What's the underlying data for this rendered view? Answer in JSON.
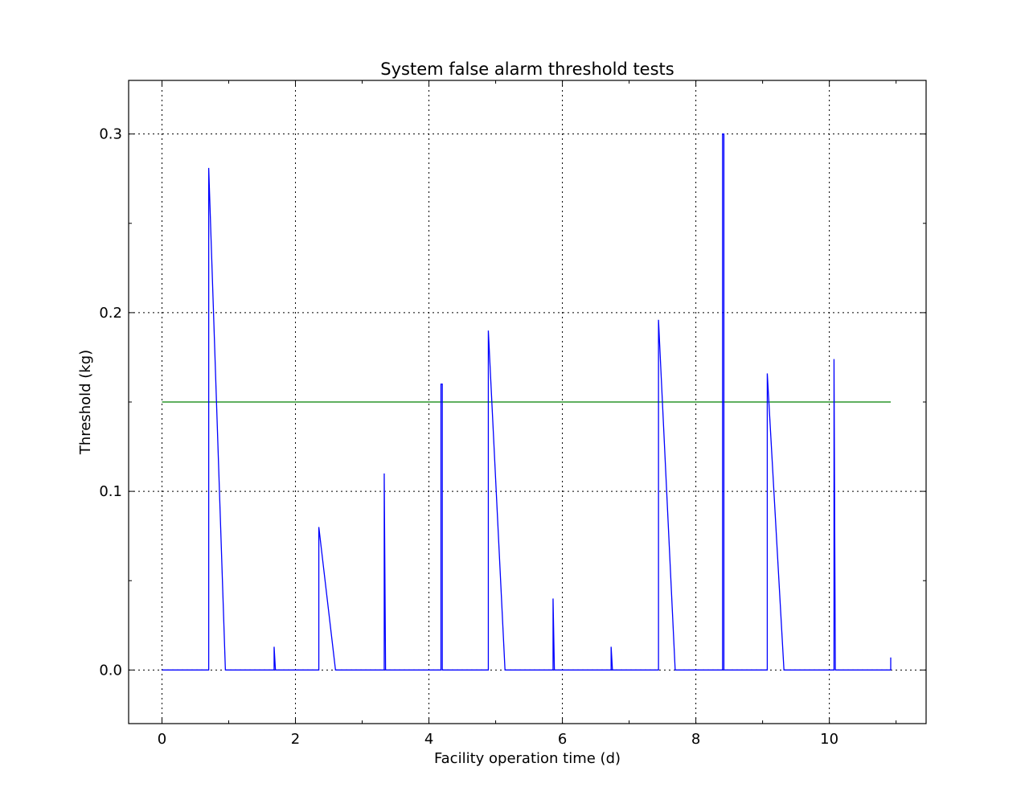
{
  "chart_data": {
    "type": "line",
    "title": "System false alarm threshold tests",
    "xlabel": "Facility operation time (d)",
    "ylabel": "Threshold (kg)",
    "xlim": [
      -0.5,
      11.45
    ],
    "ylim": [
      -0.03,
      0.33
    ],
    "xticks": [
      0,
      2,
      4,
      6,
      8,
      10
    ],
    "xtick_labels": [
      "0",
      "2",
      "4",
      "6",
      "8",
      "10"
    ],
    "yticks": [
      0.0,
      0.1,
      0.2,
      0.3
    ],
    "ytick_labels": [
      "0.0",
      "0.1",
      "0.2",
      "0.3"
    ],
    "grid": true,
    "series": [
      {
        "color": "#0000ff",
        "x": [
          0,
          0.7,
          0.7,
          0.95,
          1.68,
          1.68,
          1.7,
          2.35,
          2.35,
          2.6,
          3.33,
          3.33,
          3.35,
          4.18,
          4.18,
          4.2,
          4.2,
          4.89,
          4.89,
          5.14,
          5.86,
          5.86,
          5.88,
          6.73,
          6.73,
          6.75,
          7.44,
          7.44,
          7.69,
          8.4,
          8.4,
          8.42,
          8.42,
          9.07,
          9.07,
          9.32,
          10.07,
          10.07,
          10.09,
          10.92,
          10.92
        ],
        "y": [
          0,
          0,
          0.281,
          0,
          0,
          0.013,
          0,
          0,
          0.08,
          0,
          0,
          0.11,
          0,
          0,
          0.16,
          0.16,
          0,
          0,
          0.19,
          0,
          0,
          0.04,
          0,
          0,
          0.013,
          0,
          0,
          0.196,
          0,
          0,
          0.3,
          0.3,
          0,
          0,
          0.166,
          0,
          0,
          0.174,
          0,
          0,
          0.007
        ]
      },
      {
        "color": "#008000",
        "x": [
          0,
          10.92
        ],
        "y": [
          0.15,
          0.15
        ]
      }
    ]
  }
}
